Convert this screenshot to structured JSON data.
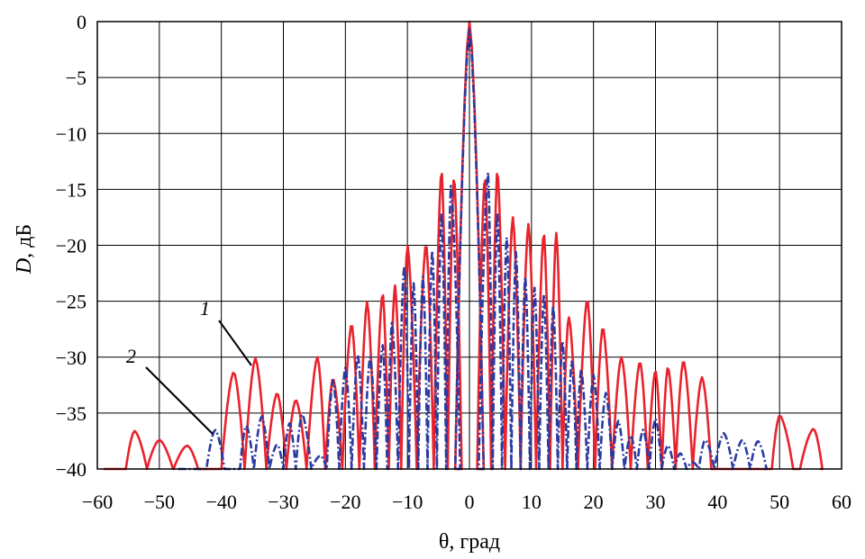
{
  "chart_data": {
    "type": "line",
    "xlabel": "θ, град",
    "ylabel_italic": "D",
    "ylabel_rest": ", дБ",
    "xlim": [
      -60,
      60
    ],
    "ylim": [
      -40,
      0
    ],
    "x_ticks": [
      -60,
      -50,
      -40,
      -30,
      -20,
      -10,
      0,
      10,
      20,
      30,
      40,
      50,
      60
    ],
    "y_ticks": [
      0,
      -5,
      -10,
      -15,
      -20,
      -25,
      -30,
      -35,
      -40
    ],
    "x_tick_labels": [
      "−60",
      "−50",
      "−40",
      "−30",
      "−20",
      "−10",
      "0",
      "10",
      "20",
      "30",
      "40",
      "50",
      "60"
    ],
    "y_tick_labels": [
      "0",
      "−5",
      "−10",
      "−15",
      "−20",
      "−25",
      "−30",
      "−35",
      "−40"
    ],
    "grid": true,
    "series": [
      {
        "name": "1",
        "color": "#e8232d",
        "style": "solid",
        "peaks": [
          [
            -54,
            -36.6
          ],
          [
            -50,
            -37.4
          ],
          [
            -45.5,
            -37.9
          ],
          [
            -42,
            -40
          ],
          [
            -38,
            -31.3
          ],
          [
            -34.5,
            -30.1
          ],
          [
            -31,
            -33.2
          ],
          [
            -28,
            -33.8
          ],
          [
            -24.5,
            -30.0
          ],
          [
            -22,
            -31.9
          ],
          [
            -19,
            -27.0
          ],
          [
            -16.5,
            -25.1
          ],
          [
            -14,
            -24.3
          ],
          [
            -12,
            -23.6
          ],
          [
            -10,
            -20.0
          ],
          [
            -7,
            -19.8
          ],
          [
            -4.5,
            -13.3
          ],
          [
            -2.5,
            -13.9
          ],
          [
            0,
            0
          ],
          [
            2.5,
            -13.9
          ],
          [
            4.5,
            -13.3
          ],
          [
            7,
            -17.5
          ],
          [
            9.5,
            -18.1
          ],
          [
            12,
            -18.9
          ],
          [
            14,
            -18.9
          ],
          [
            16,
            -26.4
          ],
          [
            19,
            -24.8
          ],
          [
            21.5,
            -27.3
          ],
          [
            24.5,
            -30.0
          ],
          [
            27.5,
            -30.4
          ],
          [
            30,
            -31.2
          ],
          [
            32,
            -30.9
          ],
          [
            34.5,
            -30.3
          ],
          [
            37.5,
            -31.8
          ],
          [
            40.5,
            -40
          ],
          [
            44,
            -40
          ],
          [
            47.5,
            -40
          ],
          [
            50,
            -35.2
          ],
          [
            55.5,
            -36.4
          ]
        ],
        "floor_extent": [
          -59,
          56.5
        ]
      },
      {
        "name": "2",
        "color": "#2b3a9f",
        "style": "dash-dot",
        "peaks": [
          [
            -41,
            -36.5
          ],
          [
            -38,
            -40
          ],
          [
            -36,
            -36.1
          ],
          [
            -33.5,
            -35.3
          ],
          [
            -31,
            -37.8
          ],
          [
            -29,
            -35.9
          ],
          [
            -27,
            -35.1
          ],
          [
            -24,
            -38.8
          ],
          [
            -22,
            -32.1
          ],
          [
            -20,
            -30.9
          ],
          [
            -18,
            -29.8
          ],
          [
            -16,
            -30.0
          ],
          [
            -14,
            -28.9
          ],
          [
            -12.5,
            -26.9
          ],
          [
            -10.5,
            -21.8
          ],
          [
            -9,
            -23.4
          ],
          [
            -7.5,
            -22.8
          ],
          [
            -6,
            -20.5
          ],
          [
            -4.5,
            -17.1
          ],
          [
            -3,
            -14.7
          ],
          [
            0,
            -0.7
          ],
          [
            3,
            -13.5
          ],
          [
            4.5,
            -17.1
          ],
          [
            6,
            -19.3
          ],
          [
            7.5,
            -20.6
          ],
          [
            9,
            -22.8
          ],
          [
            10.5,
            -23.8
          ],
          [
            12,
            -24.4
          ],
          [
            13.5,
            -25.4
          ],
          [
            15,
            -28.6
          ],
          [
            16.5,
            -30.4
          ],
          [
            18,
            -31.1
          ],
          [
            20,
            -31.6
          ],
          [
            22,
            -33.2
          ],
          [
            24,
            -35.7
          ],
          [
            26,
            -37.0
          ],
          [
            28,
            -36.5
          ],
          [
            30,
            -35.5
          ],
          [
            32,
            -37.9
          ],
          [
            34,
            -38.6
          ],
          [
            36,
            -39.4
          ],
          [
            38,
            -37.4
          ],
          [
            41,
            -36.8
          ],
          [
            44,
            -37.4
          ],
          [
            46.5,
            -37.5
          ]
        ],
        "floor_extent": [
          -47,
          47.5
        ]
      }
    ],
    "annotations": [
      {
        "text": "1",
        "series": "1"
      },
      {
        "text": "2",
        "series": "2"
      }
    ]
  }
}
